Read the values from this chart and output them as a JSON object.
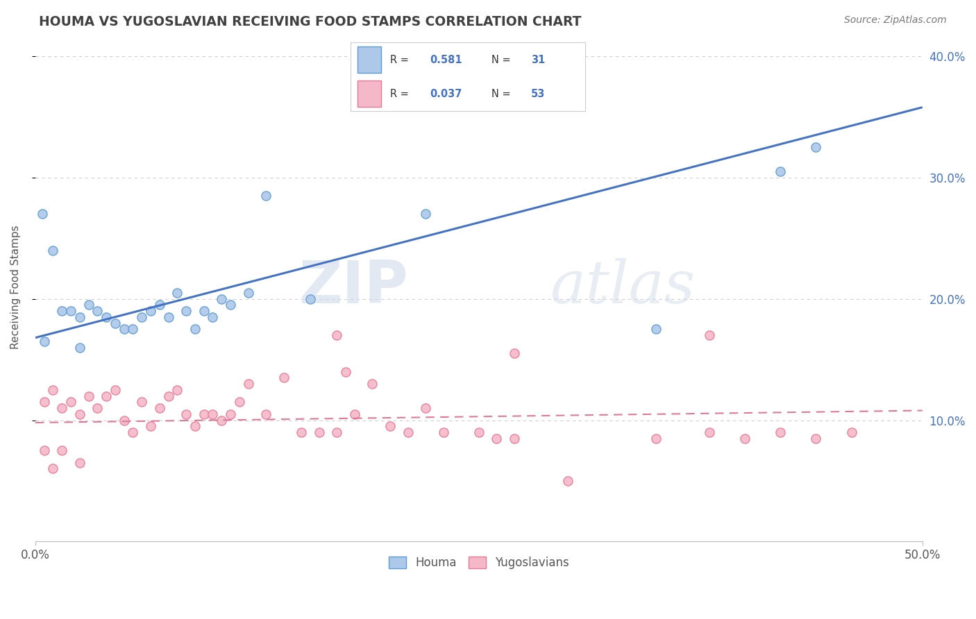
{
  "title": "HOUMA VS YUGOSLAVIAN RECEIVING FOOD STAMPS CORRELATION CHART",
  "source": "Source: ZipAtlas.com",
  "ylabel": "Receiving Food Stamps",
  "watermark_zip": "ZIP",
  "watermark_atlas": "atlas",
  "xlim": [
    0.0,
    0.5
  ],
  "ylim": [
    0.0,
    0.42
  ],
  "yticks": [
    0.1,
    0.2,
    0.3,
    0.4
  ],
  "ytick_labels": [
    "10.0%",
    "20.0%",
    "30.0%",
    "40.0%"
  ],
  "houma_R": 0.581,
  "houma_N": 31,
  "yugo_R": 0.037,
  "yugo_N": 53,
  "houma_color": "#adc8e8",
  "houma_edge_color": "#5b9bd5",
  "houma_line_color": "#4472c4",
  "yugo_color": "#f4b8c8",
  "yugo_edge_color": "#e87898",
  "yugo_line_color": "#e07898",
  "background_color": "#ffffff",
  "grid_color": "#c8c8c8",
  "title_color": "#404040",
  "right_ytick_color": "#4472c4",
  "houma_line_start_y": 0.168,
  "houma_line_end_y": 0.358,
  "yugo_line_start_y": 0.098,
  "yugo_line_end_y": 0.108,
  "houma_scatter_x": [
    0.004,
    0.01,
    0.02,
    0.025,
    0.03,
    0.035,
    0.04,
    0.045,
    0.05,
    0.055,
    0.06,
    0.065,
    0.07,
    0.075,
    0.08,
    0.085,
    0.09,
    0.095,
    0.1,
    0.105,
    0.11,
    0.12,
    0.13,
    0.155,
    0.22,
    0.35,
    0.42,
    0.44,
    0.005,
    0.015,
    0.025
  ],
  "houma_scatter_y": [
    0.27,
    0.24,
    0.19,
    0.185,
    0.195,
    0.19,
    0.185,
    0.18,
    0.175,
    0.175,
    0.185,
    0.19,
    0.195,
    0.185,
    0.205,
    0.19,
    0.175,
    0.19,
    0.185,
    0.2,
    0.195,
    0.205,
    0.285,
    0.2,
    0.27,
    0.175,
    0.305,
    0.325,
    0.165,
    0.19,
    0.16
  ],
  "yugo_scatter_x": [
    0.005,
    0.01,
    0.015,
    0.02,
    0.025,
    0.03,
    0.035,
    0.04,
    0.045,
    0.05,
    0.055,
    0.06,
    0.065,
    0.07,
    0.075,
    0.08,
    0.085,
    0.09,
    0.095,
    0.1,
    0.105,
    0.11,
    0.115,
    0.12,
    0.13,
    0.14,
    0.15,
    0.16,
    0.17,
    0.175,
    0.18,
    0.19,
    0.2,
    0.21,
    0.22,
    0.23,
    0.25,
    0.26,
    0.27,
    0.3,
    0.35,
    0.38,
    0.4,
    0.42,
    0.44,
    0.46,
    0.38,
    0.17,
    0.27,
    0.005,
    0.01,
    0.015,
    0.025
  ],
  "yugo_scatter_y": [
    0.115,
    0.125,
    0.11,
    0.115,
    0.105,
    0.12,
    0.11,
    0.12,
    0.125,
    0.1,
    0.09,
    0.115,
    0.095,
    0.11,
    0.12,
    0.125,
    0.105,
    0.095,
    0.105,
    0.105,
    0.1,
    0.105,
    0.115,
    0.13,
    0.105,
    0.135,
    0.09,
    0.09,
    0.09,
    0.14,
    0.105,
    0.13,
    0.095,
    0.09,
    0.11,
    0.09,
    0.09,
    0.085,
    0.085,
    0.05,
    0.085,
    0.09,
    0.085,
    0.09,
    0.085,
    0.09,
    0.17,
    0.17,
    0.155,
    0.075,
    0.06,
    0.075,
    0.065
  ]
}
